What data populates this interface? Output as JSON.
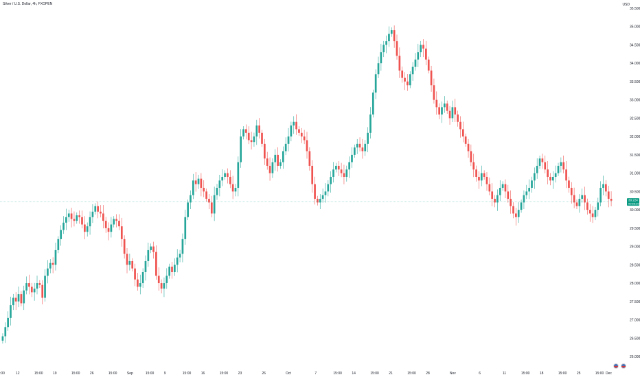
{
  "header": {
    "symbol_title": "Silver / U.S. Dollar, 4h, FXOPEN",
    "currency": "USD"
  },
  "icons": [
    "us-flag-icon",
    "us-flag-icon"
  ],
  "colors": {
    "up": "#26a69a",
    "down": "#ef5350",
    "axis_text": "#131722",
    "price_line": "#26a69a",
    "price_label_bg": "#089981"
  },
  "chart_data": {
    "type": "candlestick",
    "title": "Silver / U.S. Dollar, 4h, FXOPEN",
    "y_ticks": [
      "35.500",
      "35.000",
      "34.500",
      "34.000",
      "33.500",
      "33.000",
      "32.500",
      "32.000",
      "31.500",
      "31.000",
      "30.500",
      "30.000",
      "29.500",
      "29.000",
      "28.500",
      "28.000",
      "27.500",
      "27.000",
      "26.500",
      "26.000"
    ],
    "ylim": [
      26.0,
      35.5
    ],
    "x_ticks": [
      {
        "label": ":00",
        "i": 0
      },
      {
        "label": "12",
        "i": 6
      },
      {
        "label": "15:00",
        "i": 13
      },
      {
        "label": "19",
        "i": 20
      },
      {
        "label": "15:00",
        "i": 27
      },
      {
        "label": "26",
        "i": 34
      },
      {
        "label": "15:00",
        "i": 41
      },
      {
        "label": "Sep",
        "i": 48
      },
      {
        "label": "15:00",
        "i": 55
      },
      {
        "label": "9",
        "i": 62
      },
      {
        "label": "15:00",
        "i": 69
      },
      {
        "label": "16",
        "i": 76
      },
      {
        "label": "15:00",
        "i": 83
      },
      {
        "label": "23",
        "i": 90
      },
      {
        "label": "26",
        "i": 99
      },
      {
        "label": "Oct",
        "i": 108
      },
      {
        "label": "7",
        "i": 119
      },
      {
        "label": "15:00",
        "i": 126
      },
      {
        "label": "14",
        "i": 133
      },
      {
        "label": "15:00",
        "i": 140
      },
      {
        "label": "21",
        "i": 147
      },
      {
        "label": "15:00",
        "i": 154
      },
      {
        "label": "28",
        "i": 161
      },
      {
        "label": "Nov",
        "i": 170
      },
      {
        "label": "6",
        "i": 181
      },
      {
        "label": "11",
        "i": 190
      },
      {
        "label": "15:00",
        "i": 197
      },
      {
        "label": "18",
        "i": 204
      },
      {
        "label": "15:00",
        "i": 211
      },
      {
        "label": "25",
        "i": 218
      },
      {
        "label": "15:00",
        "i": 225
      },
      {
        "label": "Dec",
        "i": 232
      }
    ],
    "closes": [
      26.55,
      26.8,
      27.05,
      27.4,
      27.6,
      27.5,
      27.7,
      27.45,
      27.8,
      28.0,
      27.9,
      27.75,
      27.85,
      28.0,
      27.95,
      27.6,
      28.2,
      28.4,
      28.55,
      28.5,
      28.9,
      29.2,
      29.45,
      29.65,
      29.8,
      29.9,
      29.75,
      29.7,
      29.85,
      29.8,
      29.6,
      29.4,
      29.55,
      29.8,
      29.95,
      30.1,
      29.95,
      29.9,
      29.7,
      29.5,
      29.4,
      29.6,
      29.75,
      29.7,
      29.55,
      29.2,
      28.8,
      28.5,
      28.6,
      28.4,
      28.1,
      27.9,
      28.0,
      28.3,
      28.6,
      28.9,
      29.0,
      28.85,
      28.2,
      28.0,
      27.85,
      28.0,
      28.2,
      28.45,
      28.3,
      28.5,
      28.7,
      28.8,
      29.2,
      29.8,
      30.2,
      30.4,
      30.8,
      30.7,
      30.85,
      30.6,
      30.5,
      30.3,
      30.2,
      29.9,
      30.4,
      30.6,
      30.8,
      30.9,
      31.0,
      30.9,
      30.7,
      30.5,
      30.6,
      31.3,
      32.0,
      32.2,
      32.1,
      31.9,
      31.85,
      32.0,
      32.3,
      32.1,
      31.8,
      31.4,
      31.2,
      31.0,
      31.3,
      31.5,
      31.2,
      31.3,
      31.6,
      31.8,
      32.0,
      32.3,
      32.4,
      32.2,
      32.1,
      32.0,
      31.9,
      31.6,
      31.2,
      30.7,
      30.3,
      30.2,
      30.3,
      30.4,
      30.5,
      30.7,
      30.9,
      31.1,
      31.2,
      31.1,
      31.0,
      30.9,
      31.1,
      31.3,
      31.5,
      31.7,
      31.8,
      31.7,
      31.6,
      31.8,
      32.1,
      32.6,
      33.2,
      33.7,
      34.0,
      34.3,
      34.5,
      34.6,
      34.8,
      34.9,
      34.6,
      34.2,
      33.8,
      33.6,
      33.5,
      33.4,
      33.7,
      33.9,
      34.1,
      34.3,
      34.5,
      34.4,
      34.1,
      33.8,
      33.4,
      33.0,
      32.8,
      32.6,
      32.8,
      32.9,
      32.7,
      32.5,
      32.8,
      32.6,
      32.4,
      32.2,
      32.0,
      31.8,
      31.6,
      31.3,
      31.1,
      30.9,
      30.8,
      31.0,
      30.9,
      30.7,
      30.5,
      30.3,
      30.2,
      30.4,
      30.6,
      30.7,
      30.5,
      30.3,
      30.1,
      29.9,
      29.8,
      30.0,
      30.2,
      30.4,
      30.5,
      30.6,
      30.8,
      31.0,
      31.2,
      31.4,
      31.3,
      31.1,
      30.9,
      30.8,
      30.9,
      31.0,
      31.2,
      31.3,
      31.1,
      30.8,
      30.6,
      30.4,
      30.2,
      30.1,
      30.3,
      30.4,
      30.2,
      30.0,
      29.9,
      29.8,
      30.0,
      30.2,
      30.6,
      30.7,
      30.5,
      30.3,
      30.25
    ],
    "last_price": {
      "value": "30.224",
      "sub": "00:55:29",
      "level": 30.224
    }
  }
}
